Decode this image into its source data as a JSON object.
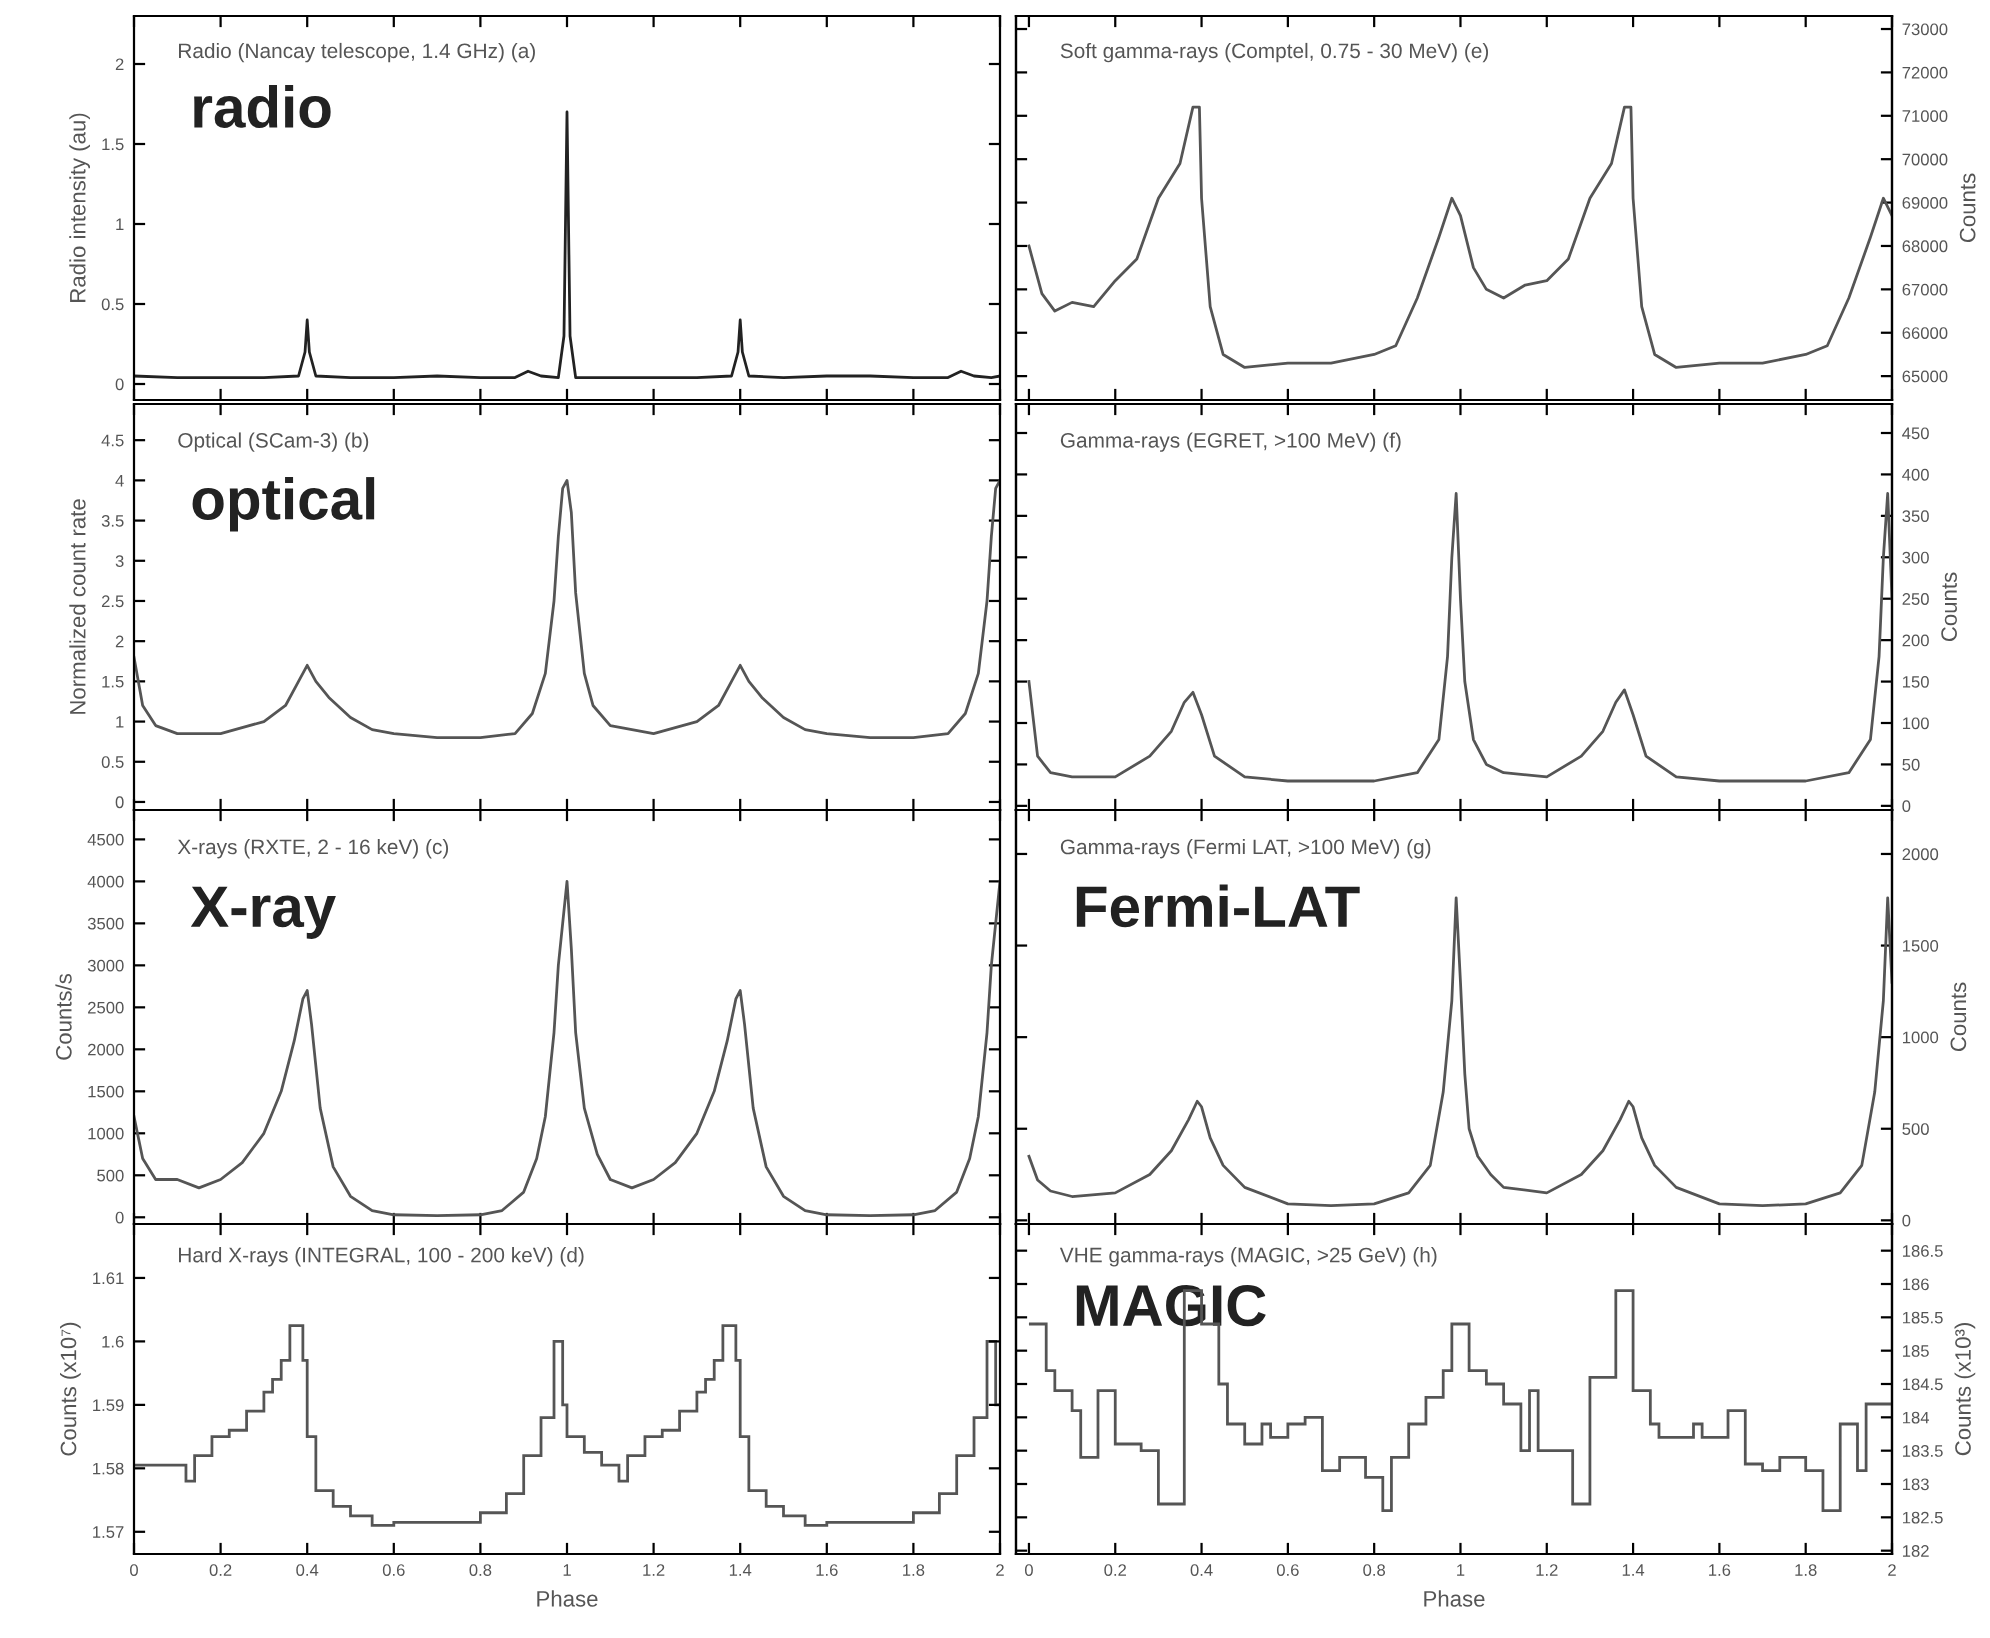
{
  "chart_data": [
    {
      "type": "line",
      "title": "Radio (Nancay telescope, 1.4 GHz) (a)",
      "ylabel": "Radio intensity (au)",
      "annotations": [
        "radio"
      ],
      "xlim": [
        0,
        2
      ],
      "ylim": [
        -0.1,
        2.3
      ],
      "xticks": [
        0,
        0.2,
        0.4,
        0.6,
        0.8,
        1,
        1.2,
        1.4,
        1.6,
        1.8,
        2
      ],
      "yticks": [
        0,
        0.5,
        1,
        1.5,
        2
      ],
      "tick_labels": "y",
      "series": [
        {
          "color": "#222222",
          "x": [
            0,
            0.1,
            0.2,
            0.3,
            0.38,
            0.395,
            0.4,
            0.405,
            0.42,
            0.5,
            0.6,
            0.7,
            0.8,
            0.88,
            0.91,
            0.94,
            0.98,
            0.993,
            1.0,
            1.007,
            1.02,
            1.1,
            1.2,
            1.3,
            1.38,
            1.395,
            1.4,
            1.405,
            1.42,
            1.5,
            1.6,
            1.7,
            1.8,
            1.88,
            1.91,
            1.94,
            1.98,
            2.0
          ],
          "values": [
            0.05,
            0.04,
            0.04,
            0.04,
            0.05,
            0.2,
            0.4,
            0.2,
            0.05,
            0.04,
            0.04,
            0.05,
            0.04,
            0.04,
            0.08,
            0.05,
            0.04,
            0.3,
            1.7,
            0.3,
            0.04,
            0.04,
            0.04,
            0.04,
            0.05,
            0.2,
            0.4,
            0.2,
            0.05,
            0.04,
            0.05,
            0.05,
            0.04,
            0.04,
            0.08,
            0.05,
            0.04,
            0.05
          ]
        }
      ]
    },
    {
      "type": "line",
      "title": "Optical (SCam-3) (b)",
      "ylabel": "Normalized count rate",
      "annotations": [
        "optical"
      ],
      "xlim": [
        0,
        2
      ],
      "ylim": [
        -0.1,
        4.95
      ],
      "xticks": [
        0,
        0.2,
        0.4,
        0.6,
        0.8,
        1,
        1.2,
        1.4,
        1.6,
        1.8,
        2
      ],
      "yticks": [
        0,
        0.5,
        1,
        1.5,
        2,
        2.5,
        3,
        3.5,
        4,
        4.5
      ],
      "tick_labels": "y",
      "series": [
        {
          "color": "#555555",
          "x": [
            0,
            0.02,
            0.05,
            0.1,
            0.2,
            0.3,
            0.35,
            0.38,
            0.4,
            0.42,
            0.45,
            0.5,
            0.55,
            0.6,
            0.7,
            0.8,
            0.88,
            0.92,
            0.95,
            0.97,
            0.98,
            0.99,
            1.0,
            1.01,
            1.02,
            1.04,
            1.06,
            1.1,
            1.2,
            1.3,
            1.35,
            1.38,
            1.4,
            1.42,
            1.45,
            1.5,
            1.55,
            1.6,
            1.7,
            1.8,
            1.88,
            1.92,
            1.95,
            1.97,
            1.98,
            1.99,
            2.0
          ],
          "values": [
            1.8,
            1.2,
            0.95,
            0.85,
            0.85,
            1.0,
            1.2,
            1.5,
            1.7,
            1.5,
            1.3,
            1.05,
            0.9,
            0.85,
            0.8,
            0.8,
            0.85,
            1.1,
            1.6,
            2.5,
            3.3,
            3.9,
            4.0,
            3.6,
            2.6,
            1.6,
            1.2,
            0.95,
            0.85,
            1.0,
            1.2,
            1.5,
            1.7,
            1.5,
            1.3,
            1.05,
            0.9,
            0.85,
            0.8,
            0.8,
            0.85,
            1.1,
            1.6,
            2.5,
            3.3,
            3.9,
            4.0
          ]
        }
      ]
    },
    {
      "type": "line",
      "title": "X-rays (RXTE, 2 - 16 keV) (c)",
      "ylabel": "Counts/s",
      "annotations": [
        "X-ray"
      ],
      "xlim": [
        0,
        2
      ],
      "ylim": [
        -80,
        4850
      ],
      "xticks": [
        0,
        0.2,
        0.4,
        0.6,
        0.8,
        1,
        1.2,
        1.4,
        1.6,
        1.8,
        2
      ],
      "yticks": [
        0,
        500,
        1000,
        1500,
        2000,
        2500,
        3000,
        3500,
        4000,
        4500
      ],
      "tick_labels": "y",
      "series": [
        {
          "color": "#555555",
          "x": [
            0,
            0.02,
            0.05,
            0.1,
            0.15,
            0.2,
            0.25,
            0.3,
            0.34,
            0.37,
            0.39,
            0.4,
            0.41,
            0.43,
            0.46,
            0.5,
            0.55,
            0.6,
            0.7,
            0.8,
            0.85,
            0.9,
            0.93,
            0.95,
            0.97,
            0.98,
            0.99,
            1.0,
            1.01,
            1.02,
            1.04,
            1.07,
            1.1,
            1.15,
            1.2,
            1.25,
            1.3,
            1.34,
            1.37,
            1.39,
            1.4,
            1.41,
            1.43,
            1.46,
            1.5,
            1.55,
            1.6,
            1.7,
            1.8,
            1.85,
            1.9,
            1.93,
            1.95,
            1.97,
            1.98,
            1.99,
            2.0
          ],
          "values": [
            1200,
            700,
            450,
            450,
            350,
            450,
            650,
            1000,
            1500,
            2100,
            2600,
            2700,
            2300,
            1300,
            600,
            250,
            80,
            30,
            20,
            30,
            80,
            300,
            700,
            1200,
            2200,
            3000,
            3500,
            4000,
            3200,
            2200,
            1300,
            750,
            450,
            350,
            450,
            650,
            1000,
            1500,
            2100,
            2600,
            2700,
            2300,
            1300,
            600,
            250,
            80,
            30,
            20,
            30,
            80,
            300,
            700,
            1200,
            2200,
            3000,
            3500,
            4000
          ]
        }
      ]
    },
    {
      "type": "histogram",
      "title": "Hard X-rays (INTEGRAL, 100 - 200 keV) (d)",
      "ylabel": "Counts (x10⁷)",
      "xlabel": "Phase",
      "xlim": [
        0,
        2
      ],
      "ylim": [
        1.5665,
        1.6185
      ],
      "xticks": [
        0,
        0.2,
        0.4,
        0.6,
        0.8,
        1,
        1.2,
        1.4,
        1.6,
        1.8,
        2
      ],
      "yticks": [
        1.57,
        1.58,
        1.59,
        {
          "value": 1.6,
          "label": "1.6"
        },
        1.61
      ],
      "bins": [
        0,
        0.12,
        0.14,
        0.18,
        0.22,
        0.26,
        0.3,
        0.32,
        0.34,
        0.36,
        0.39,
        0.4,
        0.42,
        0.46,
        0.5,
        0.55,
        0.6,
        0.8,
        0.86,
        0.9,
        0.94,
        0.97,
        0.99,
        1.0,
        1.04,
        1.08,
        1.12,
        1.14,
        1.18,
        1.22,
        1.26,
        1.3,
        1.32,
        1.34,
        1.36,
        1.39,
        1.4,
        1.42,
        1.46,
        1.5,
        1.55,
        1.6,
        1.8,
        1.86,
        1.9,
        1.94,
        1.97,
        1.99,
        2.0
      ],
      "series": [
        {
          "color": "#555555",
          "values": [
            1.5805,
            1.578,
            1.582,
            1.585,
            1.586,
            1.589,
            1.592,
            1.594,
            1.597,
            1.6025,
            1.597,
            1.585,
            1.5765,
            1.574,
            1.5725,
            1.571,
            1.5715,
            1.573,
            1.576,
            1.582,
            1.588,
            1.6,
            1.59,
            1.585,
            1.5825,
            1.5805,
            1.578,
            1.582,
            1.585,
            1.586,
            1.589,
            1.592,
            1.594,
            1.597,
            1.6025,
            1.597,
            1.585,
            1.5765,
            1.574,
            1.5725,
            1.571,
            1.5715,
            1.573,
            1.576,
            1.582,
            1.588,
            1.6,
            1.59
          ]
        }
      ]
    },
    {
      "type": "line",
      "title": "Soft gamma-rays (Comptel, 0.75 - 30 MeV) (e)",
      "y2label": "Counts",
      "xlim": [
        -0.03,
        2
      ],
      "y2lim": [
        64450,
        73300
      ],
      "xticks": [
        0,
        0.2,
        0.4,
        0.6,
        0.8,
        1,
        1.2,
        1.4,
        1.6,
        1.8,
        2
      ],
      "y2ticks": [
        65000,
        66000,
        67000,
        68000,
        69000,
        70000,
        71000,
        72000,
        73000
      ],
      "tick_labels": "y",
      "series": [
        {
          "color": "#555555",
          "axis": "y2",
          "x": [
            0,
            0.03,
            0.06,
            0.1,
            0.15,
            0.2,
            0.25,
            0.3,
            0.35,
            0.38,
            0.395,
            0.4,
            0.42,
            0.45,
            0.5,
            0.6,
            0.7,
            0.8,
            0.85,
            0.9,
            0.95,
            0.98,
            1.0,
            1.03,
            1.06,
            1.1,
            1.15,
            1.2,
            1.25,
            1.3,
            1.35,
            1.38,
            1.395,
            1.4,
            1.42,
            1.45,
            1.5,
            1.6,
            1.7,
            1.8,
            1.85,
            1.9,
            1.95,
            1.98,
            2.0
          ],
          "values": [
            68000,
            66900,
            66500,
            66700,
            66600,
            67200,
            67700,
            69100,
            69900,
            71200,
            71200,
            69100,
            66600,
            65500,
            65200,
            65300,
            65300,
            65500,
            65700,
            66800,
            68200,
            69100,
            68700,
            67500,
            67000,
            66800,
            67100,
            67200,
            67700,
            69100,
            69900,
            71200,
            71200,
            69100,
            66600,
            65500,
            65200,
            65300,
            65300,
            65500,
            65700,
            66800,
            68200,
            69100,
            68700
          ]
        }
      ]
    },
    {
      "type": "line",
      "title": "Gamma-rays (EGRET, >100 MeV) (f)",
      "y2label": "Counts",
      "xlim": [
        -0.03,
        2
      ],
      "y2lim": [
        -5,
        485
      ],
      "xticks": [
        0,
        0.2,
        0.4,
        0.6,
        0.8,
        1,
        1.2,
        1.4,
        1.6,
        1.8,
        2
      ],
      "y2ticks": [
        0,
        50,
        100,
        150,
        200,
        250,
        300,
        350,
        400,
        450
      ],
      "tick_labels": "y",
      "series": [
        {
          "color": "#555555",
          "axis": "y2",
          "x": [
            0,
            0.02,
            0.05,
            0.1,
            0.2,
            0.28,
            0.33,
            0.36,
            0.38,
            0.4,
            0.43,
            0.5,
            0.6,
            0.7,
            0.8,
            0.9,
            0.95,
            0.97,
            0.98,
            0.99,
            1.0,
            1.01,
            1.03,
            1.06,
            1.1,
            1.2,
            1.28,
            1.33,
            1.36,
            1.38,
            1.4,
            1.43,
            1.5,
            1.6,
            1.7,
            1.8,
            1.9,
            1.95,
            1.97,
            1.98,
            1.99,
            2.0
          ],
          "values": [
            150,
            60,
            40,
            35,
            35,
            60,
            90,
            125,
            137,
            110,
            60,
            35,
            30,
            30,
            30,
            40,
            80,
            180,
            300,
            377,
            250,
            150,
            80,
            50,
            40,
            35,
            60,
            90,
            125,
            140,
            110,
            60,
            35,
            30,
            30,
            30,
            40,
            80,
            180,
            300,
            377,
            250
          ]
        }
      ]
    },
    {
      "type": "line",
      "title": "Gamma-rays (Fermi LAT, >100 MeV) (g)",
      "y2label": "Counts",
      "annotations": [
        "Fermi-LAT"
      ],
      "xlim": [
        -0.03,
        2
      ],
      "y2lim": [
        -20,
        2240
      ],
      "xticks": [
        0,
        0.2,
        0.4,
        0.6,
        0.8,
        1,
        1.2,
        1.4,
        1.6,
        1.8,
        2
      ],
      "y2ticks": [
        0,
        500,
        1000,
        1500,
        2000
      ],
      "tick_labels": "y",
      "series": [
        {
          "color": "#555555",
          "axis": "y2",
          "x": [
            0,
            0.02,
            0.05,
            0.1,
            0.2,
            0.28,
            0.33,
            0.37,
            0.39,
            0.4,
            0.42,
            0.45,
            0.5,
            0.6,
            0.7,
            0.8,
            0.88,
            0.93,
            0.96,
            0.98,
            0.99,
            1.0,
            1.01,
            1.02,
            1.04,
            1.07,
            1.1,
            1.2,
            1.28,
            1.33,
            1.37,
            1.39,
            1.4,
            1.42,
            1.45,
            1.5,
            1.6,
            1.7,
            1.8,
            1.88,
            1.93,
            1.96,
            1.98,
            1.99,
            2.0
          ],
          "values": [
            350,
            220,
            160,
            130,
            150,
            250,
            380,
            550,
            650,
            620,
            450,
            300,
            180,
            90,
            80,
            90,
            150,
            300,
            700,
            1200,
            1760,
            1300,
            800,
            500,
            350,
            250,
            180,
            150,
            250,
            380,
            550,
            650,
            620,
            450,
            300,
            180,
            90,
            80,
            90,
            150,
            300,
            700,
            1200,
            1760,
            1300
          ]
        }
      ]
    },
    {
      "type": "histogram",
      "title": "VHE gamma-rays (MAGIC, >25 GeV) (h)",
      "y2label": "Counts (x10³)",
      "xlabel": "Phase",
      "annotations": [
        "MAGIC"
      ],
      "xlim": [
        -0.03,
        2
      ],
      "y2lim": [
        181.95,
        186.9
      ],
      "xticks": [
        0,
        0.2,
        0.4,
        0.6,
        0.8,
        1,
        1.2,
        1.4,
        1.6,
        1.8,
        2
      ],
      "y2ticks": [
        182,
        182.5,
        183,
        183.5,
        184,
        184.5,
        185,
        185.5,
        186,
        186.5
      ],
      "bins": [
        0,
        0.04,
        0.06,
        0.1,
        0.12,
        0.16,
        0.2,
        0.26,
        0.3,
        0.36,
        0.4,
        0.44,
        0.46,
        0.5,
        0.54,
        0.56,
        0.6,
        0.64,
        0.68,
        0.72,
        0.78,
        0.82,
        0.84,
        0.88,
        0.92,
        0.96,
        0.98,
        1.02,
        1.06,
        1.1,
        1.14,
        1.16,
        1.18,
        1.26,
        1.3,
        1.36,
        1.4,
        1.44,
        1.46,
        1.54,
        1.56,
        1.62,
        1.66,
        1.7,
        1.74,
        1.8,
        1.84,
        1.88,
        1.92,
        1.94,
        2.0
      ],
      "series": [
        {
          "color": "#555555",
          "axis": "y2",
          "values": [
            185.4,
            184.7,
            184.4,
            184.1,
            183.4,
            184.4,
            183.6,
            183.5,
            182.7,
            185.9,
            185.4,
            184.5,
            183.9,
            183.6,
            183.9,
            183.7,
            183.9,
            184.0,
            183.2,
            183.4,
            183.1,
            182.6,
            183.4,
            183.9,
            184.3,
            184.7,
            185.4,
            184.7,
            184.5,
            184.2,
            183.5,
            184.4,
            183.5,
            182.7,
            184.6,
            185.9,
            184.4,
            183.9,
            183.7,
            183.9,
            183.7,
            184.1,
            183.3,
            183.2,
            183.4,
            183.2,
            182.6,
            183.9,
            183.2,
            184.2
          ]
        }
      ]
    }
  ]
}
